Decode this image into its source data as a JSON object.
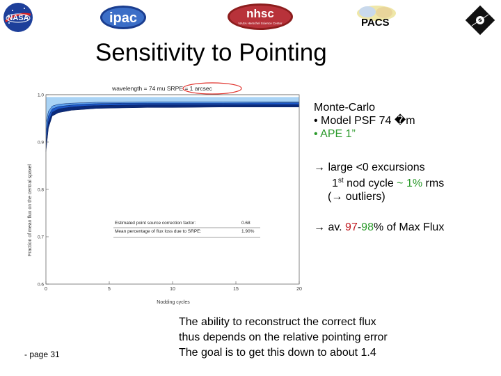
{
  "header": {
    "pacs_label": "PACS",
    "logos": {
      "nasa": "NASA",
      "ipac": "ipac",
      "nhsc": "nhsc",
      "nhsc_sub": "NASA Herschel Science Center"
    }
  },
  "title": "Sensitivity to Pointing",
  "chart_data": {
    "type": "area",
    "title": "wavelength = 74 mu  SRPE = 1 arcsec",
    "xlabel": "Nodding cycles",
    "ylabel": "Fraction of mean flux on the central spaxel",
    "xlim": [
      0,
      20
    ],
    "ylim": [
      0.6,
      1.0
    ],
    "xticks": [
      "0",
      "5",
      "10",
      "15",
      "20"
    ],
    "yticks": [
      "0.6",
      "0.7",
      "0.8",
      "0.9",
      "1.0"
    ],
    "x": [
      0,
      0.2,
      0.5,
      1,
      2,
      3,
      4,
      6,
      8,
      10,
      14,
      20
    ],
    "series": [
      {
        "values": [
          0.88,
          0.93,
          0.955,
          0.962,
          0.967,
          0.969,
          0.971,
          0.972,
          0.973,
          0.973,
          0.974,
          0.974
        ]
      },
      {
        "values": [
          0.9,
          0.943,
          0.963,
          0.97,
          0.974,
          0.976,
          0.977,
          0.978,
          0.979,
          0.979,
          0.979,
          0.979
        ]
      },
      {
        "values": [
          0.92,
          0.955,
          0.97,
          0.975,
          0.978,
          0.98,
          0.981,
          0.982,
          0.982,
          0.982,
          0.982,
          0.983
        ]
      },
      {
        "values": [
          0.94,
          0.965,
          0.976,
          0.98,
          0.982,
          0.983,
          0.984,
          0.984,
          0.985,
          0.985,
          0.985,
          0.985
        ]
      }
    ],
    "upper": [
      0.995,
      0.995,
      0.995,
      0.995,
      0.995,
      0.995,
      0.995,
      0.995,
      0.995,
      0.995,
      0.995,
      0.995
    ],
    "annotation": {
      "label1": "Estimated point source correction factor:",
      "value1": "0.68",
      "label2": "Mean percentage of flux loss due to SRPE:",
      "value2": "1.90%"
    },
    "colors": {
      "dark": "#0b2a7a",
      "mid": "#1c58c8",
      "light": "#5da0ee",
      "pale": "#a9d3f5",
      "circle": "#e0302a"
    }
  },
  "notes": {
    "block1": {
      "line1": "Monte-Carlo",
      "line2": "• Model PSF 74 �m",
      "line3": "• APE 1”"
    },
    "block2": {
      "line1": "→ large <0 excursions",
      "line2_a": "1",
      "line2_sup": "st",
      "line2_b": " nod cycle ",
      "line2_approx": "~",
      "line2_c": " ",
      "line2_pct": "1%",
      "line2_d": " rms",
      "line3": "(→ outliers)"
    },
    "block3": {
      "arrow": "→ av. ",
      "v1": "97",
      "dash": "-",
      "v2": "98",
      "rest": "% of Max Flux"
    }
  },
  "bottom": {
    "line1": "The ability to reconstruct the correct flux",
    "line2": "thus depends on the relative pointing error",
    "line3": "The goal is to get this down to about 1.4"
  },
  "page_number": "- page 31"
}
